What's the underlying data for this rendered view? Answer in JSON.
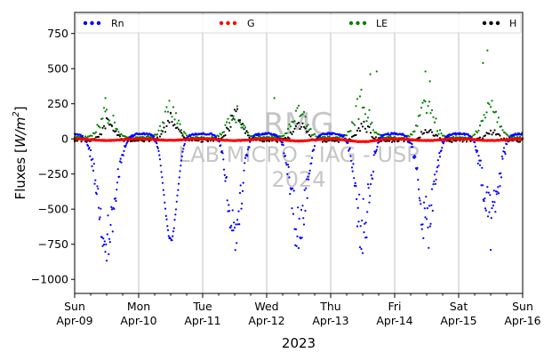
{
  "chart_data": {
    "type": "scatter",
    "title": "",
    "xlabel": "2023",
    "ylabel": "Fluxes [W/m²]",
    "ylabel_main": "Fluxes [",
    "ylabel_unit_base": "W/m",
    "ylabel_unit_exp": "2",
    "ylabel_close": "]",
    "xlim": [
      0,
      7
    ],
    "ylim": [
      -1100,
      900
    ],
    "yticks": [
      750,
      500,
      250,
      0,
      -250,
      -500,
      -750,
      -1000
    ],
    "ytick_labels": [
      "750",
      "500",
      "250",
      "0",
      "−250",
      "−500",
      "−750",
      "−1000"
    ],
    "xticks": [
      {
        "x": 0,
        "day": "Sun",
        "date": "Apr-09"
      },
      {
        "x": 1,
        "day": "Mon",
        "date": "Apr-10"
      },
      {
        "x": 2,
        "day": "Tue",
        "date": "Apr-11"
      },
      {
        "x": 3,
        "day": "Wed",
        "date": "Apr-12"
      },
      {
        "x": 4,
        "day": "Thu",
        "date": "Apr-13"
      },
      {
        "x": 5,
        "day": "Fri",
        "date": "Apr-14"
      },
      {
        "x": 6,
        "day": "Sat",
        "date": "Apr-15"
      },
      {
        "x": 7,
        "day": "Sun",
        "date": "Apr-16"
      }
    ],
    "grid": "vertical",
    "legend_position": "top",
    "series": [
      {
        "name": "Rn",
        "color": "#0000ff",
        "daily": [
          {
            "min": -700,
            "dip": 0.28,
            "noise": 170
          },
          {
            "min": -720,
            "dip": 0.2,
            "noise": 15
          },
          {
            "min": -660,
            "dip": 0.22,
            "noise": 170
          },
          {
            "min": -640,
            "dip": 0.24,
            "noise": 200
          },
          {
            "min": -640,
            "dip": 0.22,
            "noise": 210
          },
          {
            "min": -610,
            "dip": 0.24,
            "noise": 200
          },
          {
            "min": -600,
            "dip": 0.24,
            "noise": 220
          }
        ],
        "night": 45
      },
      {
        "name": "G",
        "color": "#ff0000",
        "daily_amp": [
          -12,
          -10,
          -12,
          -15,
          -20,
          -12,
          -12
        ]
      },
      {
        "name": "LE",
        "color": "#008000",
        "daily_peak": [
          200,
          240,
          210,
          240,
          320,
          280,
          320
        ],
        "outliers": [
          [
            0.48,
            290
          ],
          [
            3.12,
            290
          ],
          [
            4.62,
            460
          ],
          [
            4.72,
            480
          ],
          [
            5.48,
            480
          ],
          [
            5.55,
            410
          ],
          [
            6.45,
            630
          ],
          [
            6.38,
            540
          ]
        ]
      },
      {
        "name": "H",
        "color": "#000000",
        "daily_peak": [
          160,
          200,
          230,
          150,
          130,
          90,
          70
        ]
      }
    ]
  },
  "watermark": {
    "line1": "RMG",
    "line2": "LAB MICRO - IAG - USP",
    "line3": "2024"
  }
}
